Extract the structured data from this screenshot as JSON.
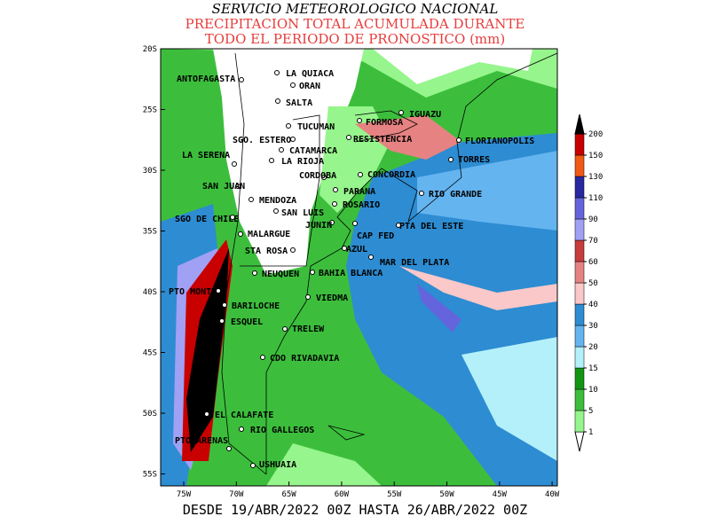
{
  "header": {
    "title": "SERVICIO METEOROLOGICO NACIONAL",
    "subtitle_lines": [
      "PRECIPITACION TOTAL ACUMULADA DURANTE",
      "TODO EL PERIODO DE PRONOSTICO (mm)"
    ]
  },
  "footer": "DESDE 19/ABR/2022 00Z HASTA 26/ABR/2022 00Z",
  "lat_labels": [
    "20S",
    "25S",
    "30S",
    "35S",
    "40S",
    "45S",
    "50S",
    "55S"
  ],
  "lon_labels": [
    "75W",
    "70W",
    "65W",
    "60W",
    "55W",
    "50W",
    "45W",
    "40W"
  ],
  "colorbar": {
    "levels": [
      1,
      5,
      10,
      15,
      20,
      30,
      40,
      50,
      60,
      70,
      90,
      110,
      130,
      150,
      200
    ],
    "colors": [
      "#96f58c",
      "#3cbe3c",
      "#129612",
      "#b4f0fa",
      "#64b4f0",
      "#2d8cd2",
      "#fac8c8",
      "#e68282",
      "#c83c3c",
      "#a0a0f5",
      "#6464dc",
      "#2828a0",
      "#f05a14",
      "#c80000",
      "#000000"
    ]
  },
  "cities": [
    "ANTOFAGASTA",
    "LA QUIACA",
    "ORAN",
    "SALTA",
    "TUCUMAN",
    "SGO. ESTERO",
    "CATAMARCA",
    "LA RIOJA",
    "LA SERENA",
    "CORDOBA",
    "SAN JUAN",
    "MENDOZA",
    "SAN LUIS",
    "SGO DE CHILE",
    "JUNIN",
    "MALARGUE",
    "STA ROSA",
    "NEUQUEN",
    "BAHIA BLANCA",
    "PTO MONTT",
    "VIEDMA",
    "BARILOCHE",
    "ESQUEL",
    "TRELEW",
    "CDO RIVADAVIA",
    "EL CALAFATE",
    "RIO GALLEGOS",
    "PTO ARENAS",
    "USHUAIA",
    "FORMOSA",
    "IGUAZU",
    "RESISTENCIA",
    "FLORIANOPOLIS",
    "TORRES",
    "CONCORDIA",
    "PARANA",
    "RIO GRANDE",
    "ROSARIO",
    "PTA DEL ESTE",
    "CAP FED",
    "AZUL",
    "MAR DEL PLATA"
  ]
}
